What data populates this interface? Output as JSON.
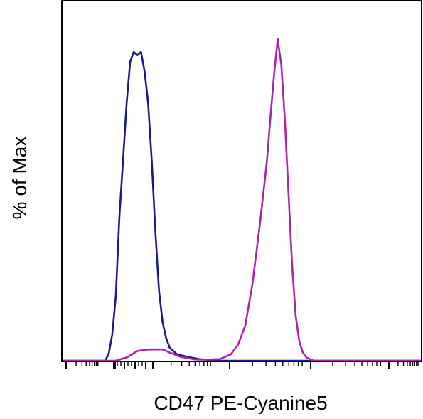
{
  "chart_data": {
    "type": "line",
    "title": "",
    "xlabel": "CD47 PE-Cyanine5",
    "ylabel": "% of Max",
    "x_scale": "biexponential",
    "x_tick_labels_shown": false,
    "y_tick_labels_shown": false,
    "xlim": [
      0,
      100
    ],
    "ylim": [
      0,
      100
    ],
    "grid": false,
    "legend": "none",
    "series": [
      {
        "color": "#1a1a8c",
        "x": [
          0,
          12,
          13,
          14,
          15,
          16,
          17,
          18,
          19,
          20,
          21,
          22,
          23,
          24,
          25,
          26,
          27,
          28,
          29,
          30,
          32,
          35,
          38,
          41,
          44,
          47,
          100
        ],
        "y": [
          0,
          0,
          2,
          8,
          20,
          45,
          62,
          80,
          93,
          96,
          95,
          96,
          90,
          80,
          62,
          40,
          22,
          12,
          7,
          4,
          2,
          1.2,
          0.5,
          0.2,
          0,
          0,
          0
        ]
      },
      {
        "color": "#b020b0",
        "x": [
          0,
          15,
          18,
          21,
          24,
          28,
          30,
          33,
          37,
          40,
          44,
          47,
          49,
          51,
          53,
          55,
          57,
          58,
          59,
          60,
          61,
          62,
          63,
          64,
          65,
          66,
          67,
          68,
          70,
          100
        ],
        "y": [
          0,
          0,
          1,
          3,
          3.5,
          3.5,
          2.5,
          1.2,
          0.4,
          0.3,
          0.5,
          2,
          5,
          11,
          24,
          42,
          62,
          76,
          89,
          100,
          92,
          75,
          52,
          30,
          14,
          6,
          2.5,
          1,
          0,
          0
        ]
      }
    ]
  }
}
